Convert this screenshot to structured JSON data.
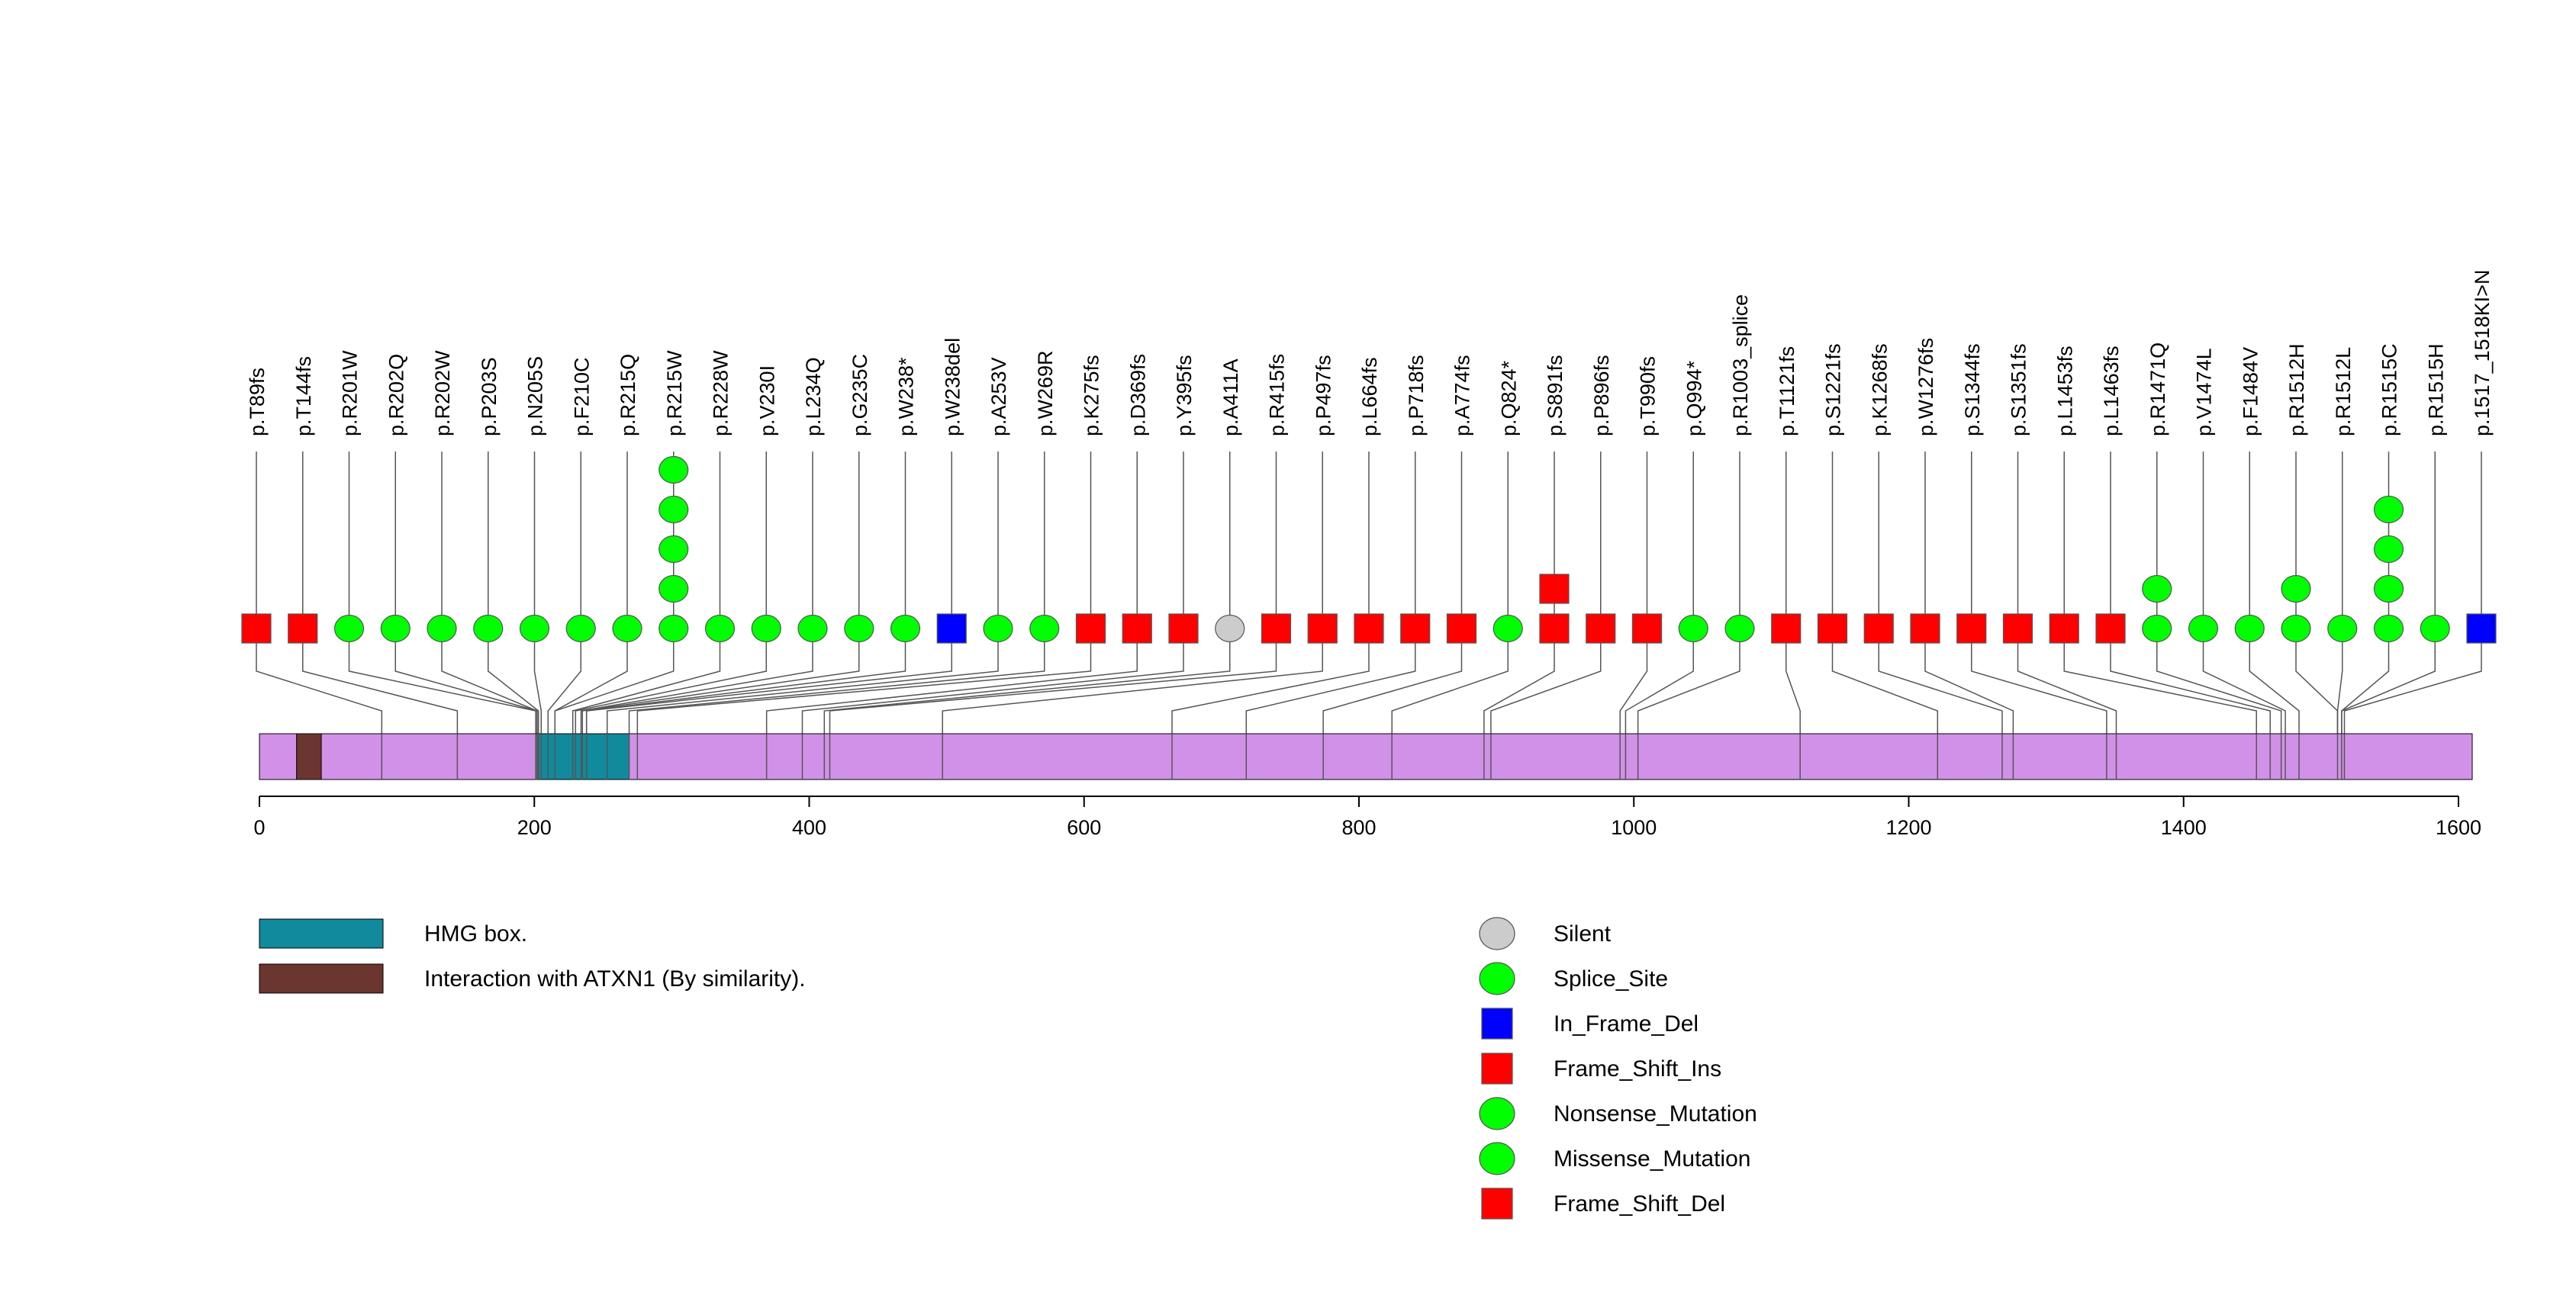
{
  "chart_data": {
    "type": "lollipop",
    "axis": {
      "min": 0,
      "max": 1610,
      "ticks": [
        0,
        200,
        400,
        600,
        800,
        1000,
        1200,
        1400,
        1600
      ]
    },
    "protein": {
      "length": 1610,
      "color": "#d291e8",
      "domains": [
        {
          "name": "HMG box.",
          "start": 202,
          "end": 269,
          "color": "#118a9e"
        },
        {
          "name": "Interaction with ATXN1 (By similarity).",
          "start": 27,
          "end": 45,
          "color": "#6b3630"
        }
      ],
      "segment_boundaries": [
        89,
        144,
        201,
        202,
        203,
        205,
        210,
        215,
        228,
        230,
        234,
        235,
        238,
        253,
        269,
        275,
        369,
        395,
        411,
        415,
        497,
        664,
        718,
        774,
        824,
        891,
        896,
        990,
        994,
        1003,
        1121,
        1221,
        1268,
        1276,
        1344,
        1351,
        1453,
        1463,
        1471,
        1474,
        1484,
        1512,
        1515,
        1517
      ]
    },
    "mutations": [
      {
        "label": "p.T89fs",
        "position": 89,
        "symbols": [
          "frame_shift"
        ]
      },
      {
        "label": "p.T144fs",
        "position": 144,
        "symbols": [
          "frame_shift"
        ]
      },
      {
        "label": "p.R201W",
        "position": 201,
        "symbols": [
          "missense"
        ]
      },
      {
        "label": "p.R202Q",
        "position": 202,
        "symbols": [
          "missense"
        ]
      },
      {
        "label": "p.R202W",
        "position": 202,
        "symbols": [
          "missense"
        ]
      },
      {
        "label": "p.P203S",
        "position": 203,
        "symbols": [
          "missense"
        ]
      },
      {
        "label": "p.N205S",
        "position": 205,
        "symbols": [
          "missense"
        ]
      },
      {
        "label": "p.F210C",
        "position": 210,
        "symbols": [
          "missense"
        ]
      },
      {
        "label": "p.R215Q",
        "position": 215,
        "symbols": [
          "missense"
        ]
      },
      {
        "label": "p.R215W",
        "position": 215,
        "symbols": [
          "missense",
          "missense",
          "missense",
          "missense",
          "missense"
        ]
      },
      {
        "label": "p.R228W",
        "position": 228,
        "symbols": [
          "missense"
        ]
      },
      {
        "label": "p.V230I",
        "position": 230,
        "symbols": [
          "missense"
        ]
      },
      {
        "label": "p.L234Q",
        "position": 234,
        "symbols": [
          "missense"
        ]
      },
      {
        "label": "p.G235C",
        "position": 235,
        "symbols": [
          "missense"
        ]
      },
      {
        "label": "p.W238*",
        "position": 238,
        "symbols": [
          "nonsense"
        ]
      },
      {
        "label": "p.W238del",
        "position": 238,
        "symbols": [
          "in_frame_del"
        ]
      },
      {
        "label": "p.A253V",
        "position": 253,
        "symbols": [
          "missense"
        ]
      },
      {
        "label": "p.W269R",
        "position": 269,
        "symbols": [
          "missense"
        ]
      },
      {
        "label": "p.K275fs",
        "position": 275,
        "symbols": [
          "frame_shift"
        ]
      },
      {
        "label": "p.D369fs",
        "position": 369,
        "symbols": [
          "frame_shift"
        ]
      },
      {
        "label": "p.Y395fs",
        "position": 395,
        "symbols": [
          "frame_shift"
        ]
      },
      {
        "label": "p.A411A",
        "position": 411,
        "symbols": [
          "silent"
        ]
      },
      {
        "label": "p.R415fs",
        "position": 415,
        "symbols": [
          "frame_shift"
        ]
      },
      {
        "label": "p.P497fs",
        "position": 497,
        "symbols": [
          "frame_shift"
        ]
      },
      {
        "label": "p.L664fs",
        "position": 664,
        "symbols": [
          "frame_shift"
        ]
      },
      {
        "label": "p.P718fs",
        "position": 718,
        "symbols": [
          "frame_shift"
        ]
      },
      {
        "label": "p.A774fs",
        "position": 774,
        "symbols": [
          "frame_shift"
        ]
      },
      {
        "label": "p.Q824*",
        "position": 824,
        "symbols": [
          "nonsense"
        ]
      },
      {
        "label": "p.S891fs",
        "position": 891,
        "symbols": [
          "frame_shift",
          "frame_shift"
        ]
      },
      {
        "label": "p.P896fs",
        "position": 896,
        "symbols": [
          "frame_shift"
        ]
      },
      {
        "label": "p.T990fs",
        "position": 990,
        "symbols": [
          "frame_shift"
        ]
      },
      {
        "label": "p.Q994*",
        "position": 994,
        "symbols": [
          "nonsense"
        ]
      },
      {
        "label": "p.R1003_splice",
        "position": 1003,
        "symbols": [
          "splice"
        ]
      },
      {
        "label": "p.T1121fs",
        "position": 1121,
        "symbols": [
          "frame_shift"
        ]
      },
      {
        "label": "p.S1221fs",
        "position": 1221,
        "symbols": [
          "frame_shift"
        ]
      },
      {
        "label": "p.K1268fs",
        "position": 1268,
        "symbols": [
          "frame_shift"
        ]
      },
      {
        "label": "p.W1276fs",
        "position": 1276,
        "symbols": [
          "frame_shift"
        ]
      },
      {
        "label": "p.S1344fs",
        "position": 1344,
        "symbols": [
          "frame_shift"
        ]
      },
      {
        "label": "p.S1351fs",
        "position": 1351,
        "symbols": [
          "frame_shift"
        ]
      },
      {
        "label": "p.L1453fs",
        "position": 1453,
        "symbols": [
          "frame_shift"
        ]
      },
      {
        "label": "p.L1463fs",
        "position": 1463,
        "symbols": [
          "frame_shift"
        ]
      },
      {
        "label": "p.R1471Q",
        "position": 1471,
        "symbols": [
          "missense",
          "missense"
        ]
      },
      {
        "label": "p.V1474L",
        "position": 1474,
        "symbols": [
          "missense"
        ]
      },
      {
        "label": "p.F1484V",
        "position": 1484,
        "symbols": [
          "missense"
        ]
      },
      {
        "label": "p.R1512H",
        "position": 1512,
        "symbols": [
          "missense",
          "missense"
        ]
      },
      {
        "label": "p.R1512L",
        "position": 1512,
        "symbols": [
          "missense"
        ]
      },
      {
        "label": "p.R1515C",
        "position": 1515,
        "symbols": [
          "missense",
          "missense",
          "missense",
          "missense"
        ]
      },
      {
        "label": "p.R1515H",
        "position": 1515,
        "symbols": [
          "missense"
        ]
      },
      {
        "label": "p.1517_1518KI>N",
        "position": 1517,
        "symbols": [
          "in_frame_del"
        ]
      }
    ],
    "symbol_styles": {
      "silent": {
        "shape": "circle",
        "color": "#cccccc"
      },
      "splice": {
        "shape": "circle",
        "color": "#00ff00"
      },
      "in_frame_del": {
        "shape": "square",
        "color": "#0000ff"
      },
      "frame_shift": {
        "shape": "square",
        "color": "#ff0000"
      },
      "nonsense": {
        "shape": "circle",
        "color": "#00ff00"
      },
      "missense": {
        "shape": "circle",
        "color": "#00ff00"
      }
    },
    "domain_legend": [
      {
        "label": "HMG box.",
        "color": "#118a9e"
      },
      {
        "label": "Interaction with ATXN1 (By similarity).",
        "color": "#6b3630"
      }
    ],
    "mutation_legend": [
      {
        "label": "Silent",
        "shape": "circle",
        "color": "#cccccc"
      },
      {
        "label": "Splice_Site",
        "shape": "circle",
        "color": "#00ff00"
      },
      {
        "label": "In_Frame_Del",
        "shape": "square",
        "color": "#0000ff"
      },
      {
        "label": "Frame_Shift_Ins",
        "shape": "square",
        "color": "#ff0000"
      },
      {
        "label": "Nonsense_Mutation",
        "shape": "circle",
        "color": "#00ff00"
      },
      {
        "label": "Missense_Mutation",
        "shape": "circle",
        "color": "#00ff00"
      },
      {
        "label": "Frame_Shift_Del",
        "shape": "square",
        "color": "#ff0000"
      }
    ]
  }
}
